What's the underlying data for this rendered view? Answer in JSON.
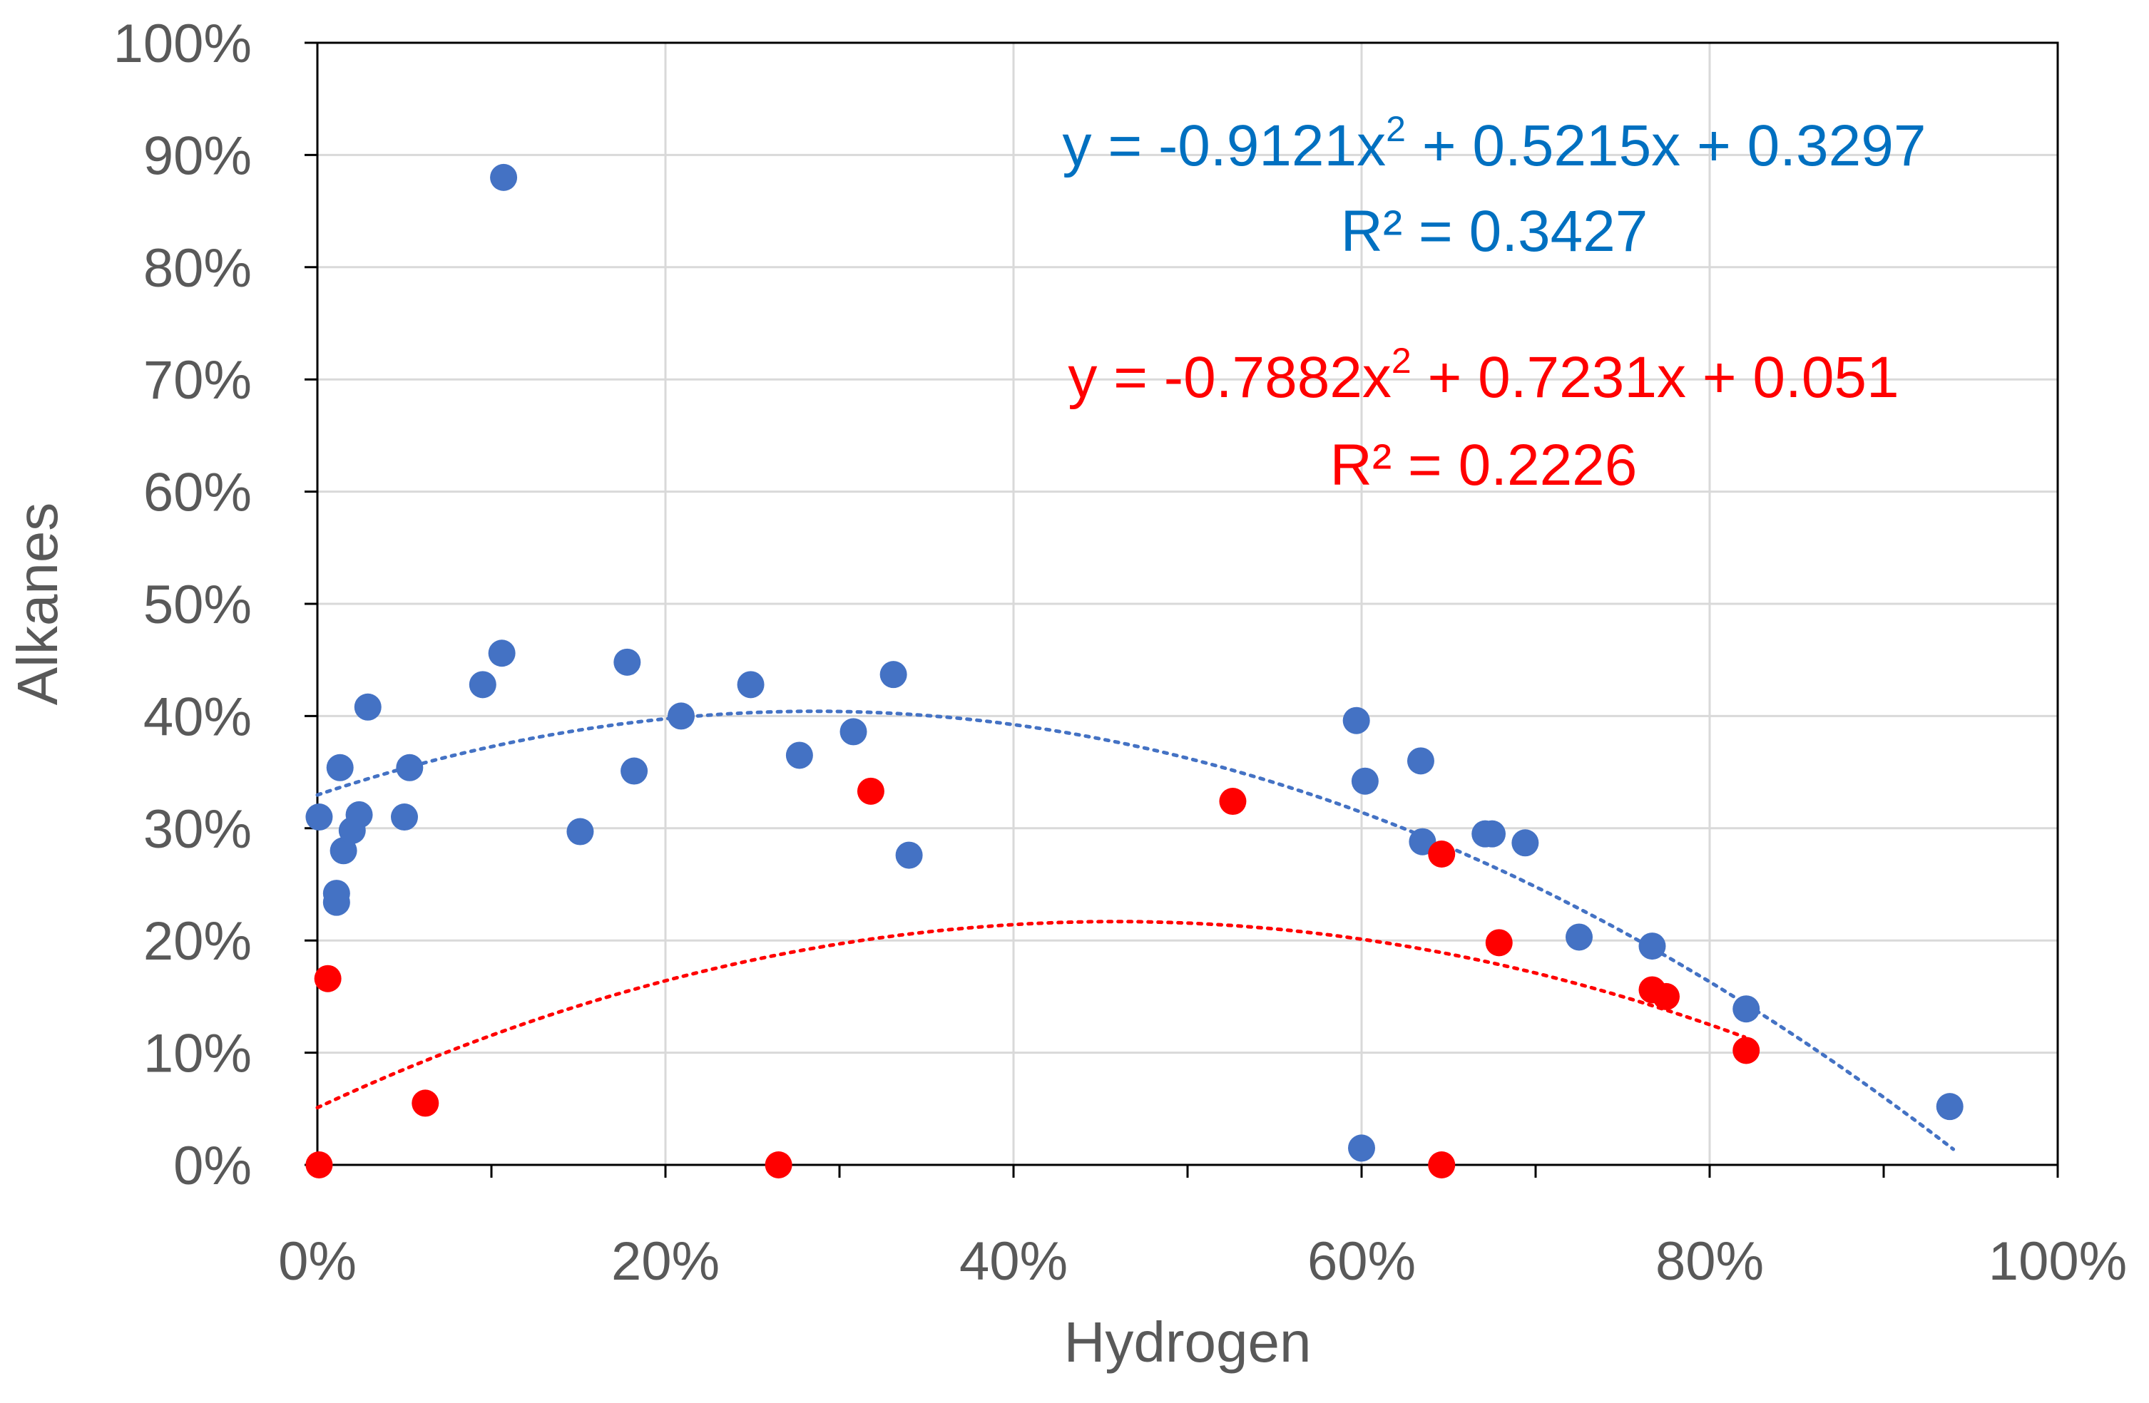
{
  "chart_data": {
    "type": "scatter",
    "xlabel": "Hydrogen",
    "ylabel": "Alkanes",
    "xlim": [
      0,
      1
    ],
    "ylim": [
      0,
      1
    ],
    "x_ticks": [
      "0%",
      "20%",
      "40%",
      "60%",
      "80%",
      "100%"
    ],
    "y_ticks": [
      "0%",
      "10%",
      "20%",
      "30%",
      "40%",
      "50%",
      "60%",
      "70%",
      "80%",
      "90%",
      "100%"
    ],
    "grid": true,
    "series": [
      {
        "name": "blue",
        "color": "#4472C4",
        "points": [
          [
            0.001,
            0.31
          ],
          [
            0.011,
            0.242
          ],
          [
            0.011,
            0.234
          ],
          [
            0.013,
            0.354
          ],
          [
            0.015,
            0.28
          ],
          [
            0.02,
            0.298
          ],
          [
            0.024,
            0.312
          ],
          [
            0.029,
            0.408
          ],
          [
            0.05,
            0.31
          ],
          [
            0.053,
            0.354
          ],
          [
            0.095,
            0.428
          ],
          [
            0.106,
            0.456
          ],
          [
            0.107,
            0.88
          ],
          [
            0.151,
            0.297
          ],
          [
            0.178,
            0.448
          ],
          [
            0.182,
            0.351
          ],
          [
            0.209,
            0.4
          ],
          [
            0.249,
            0.428
          ],
          [
            0.277,
            0.365
          ],
          [
            0.308,
            0.386
          ],
          [
            0.331,
            0.437
          ],
          [
            0.34,
            0.276
          ],
          [
            0.597,
            0.396
          ],
          [
            0.6,
            0.015
          ],
          [
            0.602,
            0.342
          ],
          [
            0.634,
            0.36
          ],
          [
            0.635,
            0.288
          ],
          [
            0.671,
            0.295
          ],
          [
            0.675,
            0.295
          ],
          [
            0.694,
            0.287
          ],
          [
            0.725,
            0.203
          ],
          [
            0.767,
            0.195
          ],
          [
            0.821,
            0.139
          ],
          [
            0.938,
            0.052
          ]
        ],
        "trendline": {
          "a": -0.9121,
          "b": 0.5215,
          "c": 0.3297,
          "x_range": [
            0,
            0.94
          ],
          "style": "dotted"
        },
        "equation": "y = -0.9121x",
        "equation_sup": "2",
        "equation_rest": " + 0.5215x + 0.3297",
        "r2": "R² = 0.3427"
      },
      {
        "name": "red",
        "color": "#FF0000",
        "points": [
          [
            0.001,
            0.0
          ],
          [
            0.006,
            0.166
          ],
          [
            0.062,
            0.055
          ],
          [
            0.265,
            0.0
          ],
          [
            0.318,
            0.333
          ],
          [
            0.526,
            0.324
          ],
          [
            0.646,
            0.277
          ],
          [
            0.646,
            0.0
          ],
          [
            0.679,
            0.198
          ],
          [
            0.767,
            0.156
          ],
          [
            0.775,
            0.15
          ],
          [
            0.821,
            0.102
          ]
        ],
        "trendline": {
          "a": -0.7882,
          "b": 0.7231,
          "c": 0.051,
          "x_range": [
            0,
            0.82
          ],
          "style": "dotted"
        },
        "equation": "y = -0.7882x",
        "equation_sup": "2",
        "equation_rest": " + 0.7231x + 0.051",
        "r2": "R² = 0.2226"
      }
    ]
  }
}
